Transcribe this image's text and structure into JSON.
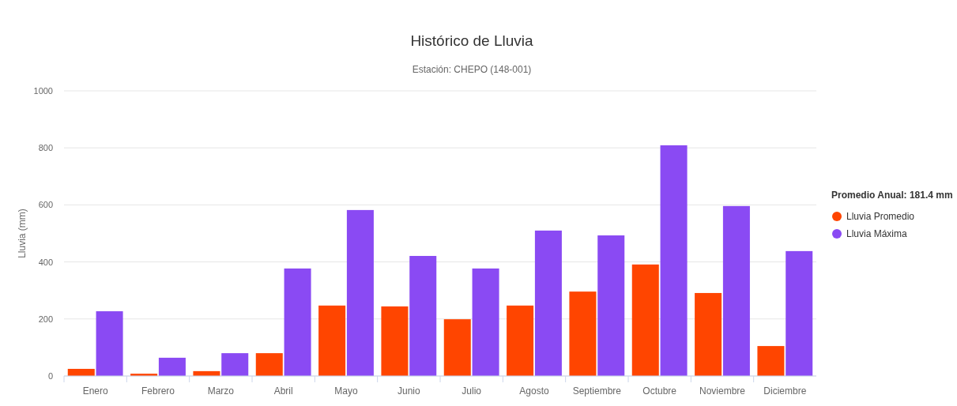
{
  "chart_data": {
    "type": "bar",
    "title": "Histórico de Lluvia",
    "subtitle": "Estación: CHEPO (148-001)",
    "ylabel": "Lluvia (mm)",
    "legend_title": "Promedio Anual: 181.4 mm",
    "categories": [
      "Enero",
      "Febrero",
      "Marzo",
      "Abril",
      "Mayo",
      "Junio",
      "Julio",
      "Agosto",
      "Septiembre",
      "Octubre",
      "Noviembre",
      "Diciembre"
    ],
    "series": [
      {
        "name": "Lluvia Promedio",
        "color": "#ff4500",
        "values": [
          25,
          8,
          17,
          80,
          247,
          244,
          199,
          247,
          296,
          391,
          291,
          105
        ]
      },
      {
        "name": "Lluvia Máxima",
        "color": "#8a4af3",
        "values": [
          227,
          64,
          80,
          377,
          582,
          421,
          377,
          510,
          493,
          809,
          596,
          438
        ]
      }
    ],
    "ylim": [
      0,
      1000
    ],
    "yticks": [
      0,
      200,
      400,
      600,
      800,
      1000
    ],
    "grid": "y",
    "legend": "right"
  }
}
